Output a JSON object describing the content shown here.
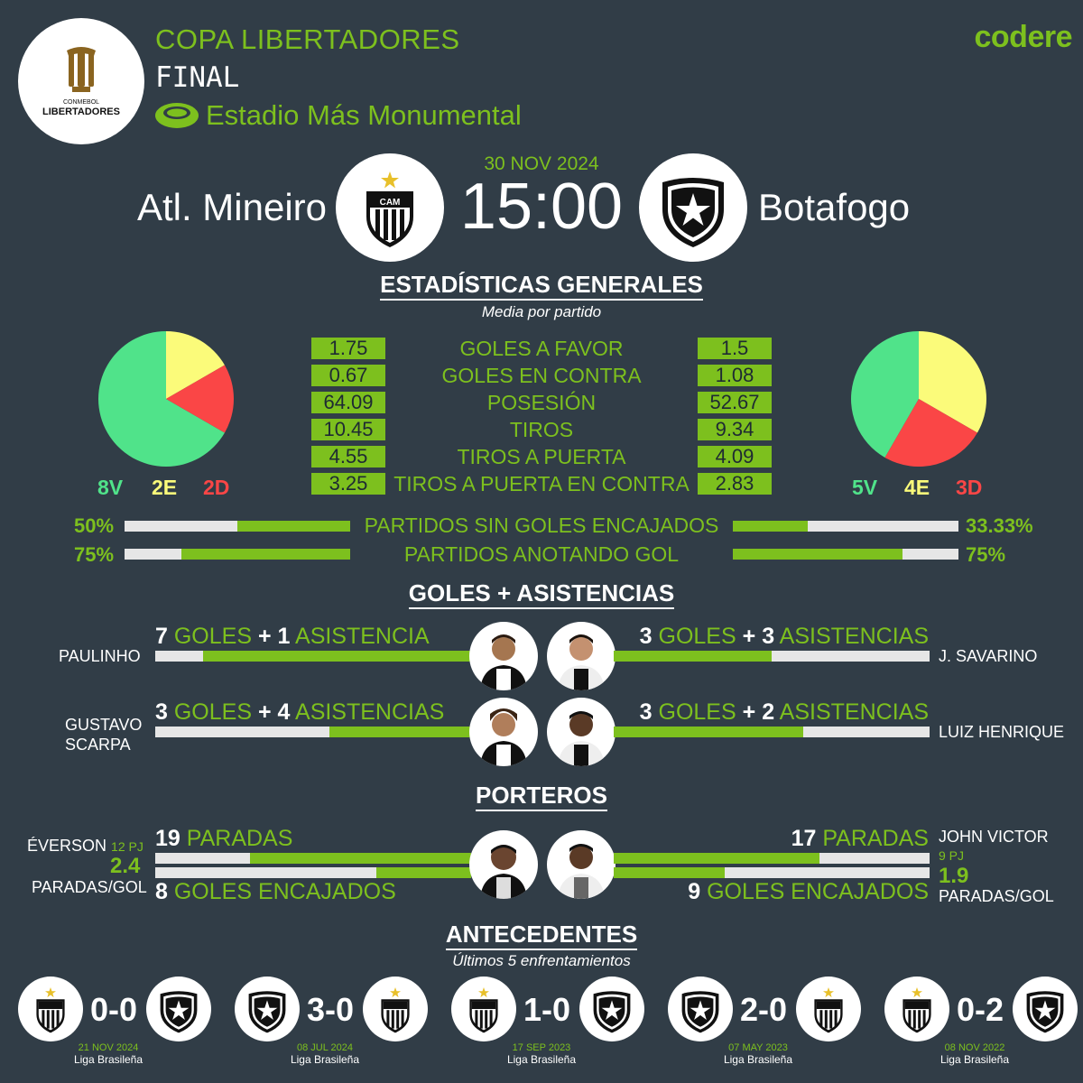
{
  "header": {
    "competition": "COPA LIBERTADORES",
    "round": "FINAL",
    "venue": "Estadio Más Monumental",
    "brand": "codere",
    "logo_text_top": "CONMEBOL",
    "logo_text_bottom": "LIBERTADORES"
  },
  "match": {
    "date": "30 NOV 2024",
    "time": "15:00",
    "home": {
      "name": "Atl. Mineiro",
      "crest_text": "CAM"
    },
    "away": {
      "name": "Botafogo"
    }
  },
  "stats": {
    "title": "ESTADÍSTICAS GENERALES",
    "subtitle": "Media por partido",
    "rows": [
      {
        "label": "GOLES A FAVOR",
        "home": "1.75",
        "away": "1.5"
      },
      {
        "label": "GOLES EN CONTRA",
        "home": "0.67",
        "away": "1.08"
      },
      {
        "label": "POSESIÓN",
        "home": "64.09",
        "away": "52.67"
      },
      {
        "label": "TIROS",
        "home": "10.45",
        "away": "9.34"
      },
      {
        "label": "TIROS A PUERTA",
        "home": "4.55",
        "away": "4.09"
      },
      {
        "label": "TIROS A PUERTA EN CONTRA",
        "home": "3.25",
        "away": "2.83"
      }
    ],
    "home_record": {
      "w": "8V",
      "d": "2E",
      "l": "2D",
      "wins": 8,
      "draws": 2,
      "losses": 2
    },
    "away_record": {
      "w": "5V",
      "d": "4E",
      "l": "3D",
      "wins": 5,
      "draws": 4,
      "losses": 3
    },
    "colors": {
      "win": "#50e38a",
      "draw": "#fbfb7a",
      "loss": "#fa4646"
    },
    "percent_rows": [
      {
        "label": "PARTIDOS SIN GOLES ENCAJADOS",
        "home": "50%",
        "away": "33.33%",
        "home_value": 50,
        "away_value": 33.33
      },
      {
        "label": "PARTIDOS ANOTANDO GOL",
        "home": "75%",
        "away": "75%",
        "home_value": 75,
        "away_value": 75
      }
    ]
  },
  "scorers": {
    "title": "GOLES + ASISTENCIAS",
    "goals_word": "GOLES",
    "plus": "+",
    "rows": [
      {
        "home": {
          "name": "PAULINHO",
          "goals": "7",
          "assists": "1",
          "assists_word": "ASISTENCIA",
          "bar": 0.85
        },
        "away": {
          "name": "J. SAVARINO",
          "goals": "3",
          "assists": "3",
          "assists_word": "ASISTENCIAS",
          "bar": 0.5
        }
      },
      {
        "home": {
          "name_l1": "GUSTAVO",
          "name_l2": "SCARPA",
          "goals": "3",
          "assists": "4",
          "assists_word": "ASISTENCIAS",
          "bar": 0.45
        },
        "away": {
          "name": "LUIZ HENRIQUE",
          "goals": "3",
          "assists": "2",
          "assists_word": "ASISTENCIAS",
          "bar": 0.6
        }
      }
    ]
  },
  "keepers": {
    "title": "PORTEROS",
    "saves_word": "PARADAS",
    "conceded_word": "GOLES ENCAJADOS",
    "home": {
      "name": "ÉVERSON",
      "pj": "12 PJ",
      "ratio": "2.4",
      "ratio_label": "PARADAS/GOL",
      "saves": "19",
      "conceded": "8",
      "saves_bar": 0.7,
      "conceded_bar": 0.3
    },
    "away": {
      "name": "JOHN VICTOR",
      "pj": "9 PJ",
      "ratio": "1.9",
      "ratio_label": "PARADAS/GOL",
      "saves": "17",
      "conceded": "9",
      "saves_bar": 0.65,
      "conceded_bar": 0.35
    }
  },
  "history": {
    "title": "ANTECEDENTES",
    "subtitle": "Últimos 5 enfrentamientos",
    "games": [
      {
        "score": "0-0",
        "date": "21 NOV 2024",
        "comp": "Liga Brasileña",
        "home_first": true
      },
      {
        "score": "3-0",
        "date": "08 JUL 2024",
        "comp": "Liga Brasileña",
        "home_first": false
      },
      {
        "score": "1-0",
        "date": "17 SEP 2023",
        "comp": "Liga Brasileña",
        "home_first": true
      },
      {
        "score": "2-0",
        "date": "07 MAY 2023",
        "comp": "Liga Brasileña",
        "home_first": false
      },
      {
        "score": "0-2",
        "date": "08 NOV 2022",
        "comp": "Liga Brasileña",
        "home_first": true
      }
    ]
  }
}
